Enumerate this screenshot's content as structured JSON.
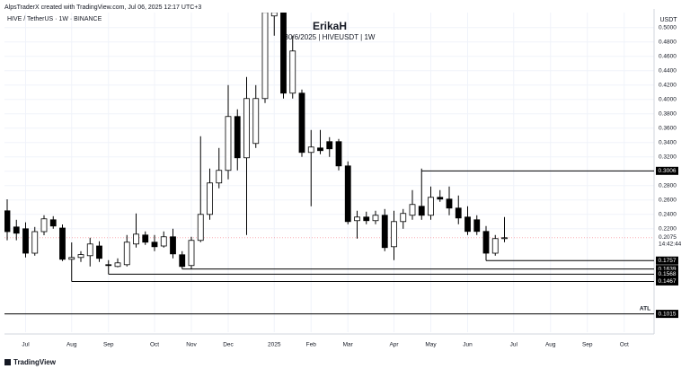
{
  "header": {
    "credit": "AlpsTraderX created with TradingView.com, Jul 06, 2025 12:17 UTC+3",
    "symbol": "HIVE / TetherUS · 1W · BINANCE",
    "footer": "TradingView"
  },
  "chart_data": {
    "type": "candlestick",
    "title": "ErikaH",
    "subtitle": "30/6/2025 | HIVEUSDT | 1W",
    "y_axis_label": "USDT",
    "categories": [
      null,
      null,
      "Jul",
      null,
      null,
      null,
      null,
      "Aug",
      null,
      null,
      null,
      "Sep",
      null,
      null,
      null,
      null,
      "Oct",
      null,
      null,
      null,
      "Nov",
      null,
      null,
      null,
      "Dec",
      null,
      null,
      null,
      null,
      "2025",
      null,
      null,
      null,
      "Feb",
      null,
      null,
      null,
      "Mar",
      null,
      null,
      null,
      null,
      "Apr",
      null,
      null,
      null,
      "May",
      null,
      null,
      null,
      "Jun",
      null,
      null,
      null,
      null,
      "Jul",
      null,
      null,
      null,
      "Aug",
      null,
      null,
      null,
      "Sep",
      null,
      null,
      null,
      "Oct",
      null,
      null
    ],
    "open": [
      0.245,
      0.2225,
      0.22,
      0.186,
      0.216,
      0.2325,
      0.221,
      0.1775,
      0.18,
      0.1825,
      0.196,
      0.17,
      0.1675,
      0.17,
      0.1988,
      0.2113,
      0.2013,
      0.196,
      0.2088,
      0.1838,
      0.1688,
      0.2038,
      0.24,
      0.2838,
      0.3013,
      0.3763,
      0.3188,
      0.3388,
      0.4013,
      0.5163,
      0.5213,
      0.4088,
      0.4088,
      0.3263,
      0.3325,
      0.3413,
      0.3413,
      0.3075,
      0.2313,
      0.2363,
      0.2313,
      0.2388,
      0.195,
      0.23,
      0.2388,
      0.2513,
      0.2388,
      0.2638,
      0.2613,
      0.2488,
      0.2363,
      0.2325,
      0.2163,
      0.186,
      0.2063,
      null,
      null,
      null,
      null,
      null,
      null,
      null,
      null,
      null,
      null,
      null,
      null,
      null,
      null,
      null
    ],
    "high": [
      0.261,
      0.2325,
      0.229,
      0.2225,
      0.2388,
      0.2375,
      0.226,
      0.201,
      0.1888,
      0.2075,
      0.2025,
      0.1763,
      0.1788,
      0.2113,
      0.2413,
      0.2163,
      0.2113,
      0.2163,
      0.22,
      0.1888,
      0.2088,
      0.3488,
      0.3038,
      0.3325,
      0.42,
      0.3863,
      0.4313,
      0.42,
      0.5288,
      0.5288,
      0.5288,
      0.4888,
      0.4138,
      0.3575,
      0.3575,
      0.3475,
      0.345,
      0.3138,
      0.245,
      0.2438,
      0.245,
      0.2475,
      0.245,
      0.2475,
      0.2738,
      0.3038,
      0.2788,
      0.2738,
      0.2788,
      0.2663,
      0.2513,
      0.2388,
      0.2238,
      0.2113,
      0.2363,
      null,
      null,
      null,
      null,
      null,
      null,
      null,
      null,
      null,
      null,
      null,
      null,
      null,
      null,
      null
    ],
    "low": [
      0.204,
      0.204,
      0.18,
      0.1825,
      0.211,
      0.22,
      0.175,
      0.1467,
      0.1738,
      0.1675,
      0.1738,
      0.1568,
      0.1663,
      0.1675,
      0.1938,
      0.1975,
      0.1888,
      0.1938,
      0.1788,
      0.1639,
      0.1639,
      0.2013,
      0.2325,
      0.2763,
      0.2888,
      0.3013,
      0.2113,
      0.3325,
      0.395,
      0.4888,
      0.4013,
      0.4013,
      0.32,
      0.2513,
      0.3238,
      0.32,
      0.3013,
      0.2263,
      0.2063,
      0.2263,
      0.2263,
      0.1888,
      0.1763,
      0.22,
      0.2325,
      0.2325,
      0.2325,
      0.2575,
      0.2388,
      0.2263,
      0.2113,
      0.2113,
      0.1757,
      0.1825,
      0.2013,
      null,
      null,
      null,
      null,
      null,
      null,
      null,
      null,
      null,
      null,
      null,
      null,
      null,
      null,
      null
    ],
    "close": [
      0.216,
      0.2138,
      0.186,
      0.216,
      0.2338,
      0.2238,
      0.1775,
      0.18,
      0.184,
      0.1988,
      0.1788,
      0.1688,
      0.1725,
      0.2013,
      0.2125,
      0.2013,
      0.195,
      0.2088,
      0.185,
      0.1675,
      0.2038,
      0.24,
      0.2838,
      0.3013,
      0.3763,
      0.3188,
      0.4013,
      0.4013,
      0.5213,
      0.5213,
      0.4088,
      0.4675,
      0.3263,
      0.3338,
      0.3288,
      0.3313,
      0.3075,
      0.23,
      0.2363,
      0.2313,
      0.2388,
      0.1938,
      0.23,
      0.2413,
      0.2538,
      0.2388,
      0.2638,
      0.2613,
      0.2488,
      0.235,
      0.2163,
      0.2163,
      0.186,
      0.2063,
      0.2075,
      null,
      null,
      null,
      null,
      null,
      null,
      null,
      null,
      null,
      null,
      null,
      null,
      null,
      null,
      null
    ],
    "up_color": "#ffffff",
    "down_color": "#000000",
    "wick_color": "#000000",
    "levels": [
      0.3006,
      0.1757,
      0.1639,
      0.1568,
      0.1467,
      0.1015
    ],
    "atl_label": "ATL",
    "countdown": "14:42:44",
    "ylim": [
      0.076,
      0.521
    ],
    "yticks": [
      {
        "value": 0.22,
        "label": "0.2200"
      },
      {
        "value": 0.24,
        "label": "0.2400"
      },
      {
        "value": 0.26,
        "label": "0.2600"
      },
      {
        "value": 0.28,
        "label": "0.2800"
      },
      {
        "value": 0.3,
        "label": "0.3000"
      },
      {
        "value": 0.32,
        "label": "0.3200"
      },
      {
        "value": 0.34,
        "label": "0.3400"
      },
      {
        "value": 0.36,
        "label": "0.3600"
      },
      {
        "value": 0.38,
        "label": "0.3800"
      },
      {
        "value": 0.4,
        "label": "0.4000"
      },
      {
        "value": 0.42,
        "label": "0.4200"
      },
      {
        "value": 0.44,
        "label": "0.4400"
      },
      {
        "value": 0.46,
        "label": "0.4600"
      },
      {
        "value": 0.48,
        "label": "0.4800"
      },
      {
        "value": 0.5,
        "label": "0.5000"
      }
    ],
    "grid": true
  }
}
